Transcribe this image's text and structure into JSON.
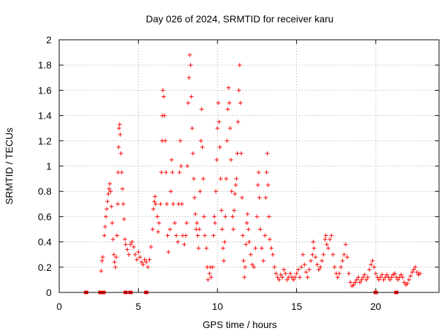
{
  "chart_data": {
    "type": "scatter",
    "title": "Day 026 of 2024, SRMTID for receiver karu",
    "xlabel": "GPS time / hours",
    "ylabel": "SRMTID / TECUs",
    "xlim": [
      0,
      24
    ],
    "ylim": [
      0,
      2
    ],
    "xticks": [
      0,
      5,
      10,
      15,
      20
    ],
    "xtick_labels": [
      "0",
      "5",
      "10",
      "15",
      "20"
    ],
    "yticks": [
      0,
      0.2,
      0.4,
      0.6,
      0.8,
      1,
      1.2,
      1.4,
      1.6,
      1.8,
      2
    ],
    "ytick_labels": [
      "0",
      "0.2",
      "0.4",
      "0.6",
      "0.8",
      "1",
      "1.2",
      "1.4",
      "1.6",
      "1.8",
      "2"
    ],
    "grid": true,
    "marker": "plus",
    "color": "#ff0000",
    "series": [
      {
        "name": "SRMTID",
        "zero_points": [
          1.7,
          2.6,
          2.7,
          2.8,
          4.2,
          4.5,
          5.5,
          20.0,
          21.3
        ],
        "points": [
          [
            2.65,
            0.17
          ],
          [
            2.7,
            0.25
          ],
          [
            2.75,
            0.28
          ],
          [
            2.85,
            0.45
          ],
          [
            2.9,
            0.52
          ],
          [
            2.95,
            0.6
          ],
          [
            3.0,
            0.66
          ],
          [
            3.05,
            0.72
          ],
          [
            3.1,
            0.78
          ],
          [
            3.15,
            0.82
          ],
          [
            3.2,
            0.86
          ],
          [
            3.25,
            0.8
          ],
          [
            3.3,
            0.68
          ],
          [
            3.35,
            0.55
          ],
          [
            3.4,
            0.42
          ],
          [
            3.45,
            0.3
          ],
          [
            3.5,
            0.24
          ],
          [
            3.55,
            0.2
          ],
          [
            3.6,
            0.28
          ],
          [
            3.65,
            0.45
          ],
          [
            3.7,
            0.7
          ],
          [
            3.72,
            0.95
          ],
          [
            3.75,
            1.15
          ],
          [
            3.78,
            1.3
          ],
          [
            3.82,
            1.33
          ],
          [
            3.85,
            1.25
          ],
          [
            3.9,
            1.1
          ],
          [
            3.95,
            0.95
          ],
          [
            4.0,
            0.82
          ],
          [
            4.05,
            0.7
          ],
          [
            4.1,
            0.58
          ],
          [
            4.15,
            0.42
          ],
          [
            4.2,
            0.38
          ],
          [
            4.3,
            0.34
          ],
          [
            4.4,
            0.3
          ],
          [
            4.5,
            0.38
          ],
          [
            4.6,
            0.4
          ],
          [
            4.7,
            0.36
          ],
          [
            4.8,
            0.3
          ],
          [
            4.9,
            0.26
          ],
          [
            5.0,
            0.32
          ],
          [
            5.1,
            0.28
          ],
          [
            5.2,
            0.24
          ],
          [
            5.3,
            0.22
          ],
          [
            5.4,
            0.26
          ],
          [
            5.5,
            0.24
          ],
          [
            5.6,
            0.2
          ],
          [
            5.7,
            0.26
          ],
          [
            5.8,
            0.36
          ],
          [
            5.9,
            0.5
          ],
          [
            5.95,
            0.66
          ],
          [
            6.0,
            0.72
          ],
          [
            6.05,
            0.76
          ],
          [
            6.1,
            0.7
          ],
          [
            6.2,
            0.6
          ],
          [
            6.25,
            0.48
          ],
          [
            6.3,
            0.55
          ],
          [
            6.4,
            0.7
          ],
          [
            6.45,
            0.95
          ],
          [
            6.5,
            1.2
          ],
          [
            6.52,
            1.4
          ],
          [
            6.55,
            1.6
          ],
          [
            6.6,
            1.55
          ],
          [
            6.65,
            1.4
          ],
          [
            6.7,
            1.2
          ],
          [
            6.75,
            0.95
          ],
          [
            6.8,
            0.7
          ],
          [
            6.85,
            0.45
          ],
          [
            6.9,
            0.32
          ],
          [
            7.0,
            0.5
          ],
          [
            7.05,
            0.8
          ],
          [
            7.1,
            1.05
          ],
          [
            7.15,
            0.95
          ],
          [
            7.2,
            0.7
          ],
          [
            7.3,
            0.55
          ],
          [
            7.4,
            0.45
          ],
          [
            7.5,
            0.4
          ],
          [
            7.55,
            0.7
          ],
          [
            7.6,
            0.95
          ],
          [
            7.65,
            1.2
          ],
          [
            7.7,
            1.0
          ],
          [
            7.75,
            0.7
          ],
          [
            7.8,
            0.45
          ],
          [
            7.9,
            0.38
          ],
          [
            8.0,
            0.45
          ],
          [
            8.05,
            0.55
          ],
          [
            8.1,
            1.0
          ],
          [
            8.15,
            1.5
          ],
          [
            8.2,
            1.7
          ],
          [
            8.25,
            1.88
          ],
          [
            8.3,
            1.8
          ],
          [
            8.35,
            1.55
          ],
          [
            8.4,
            1.3
          ],
          [
            8.45,
            1.1
          ],
          [
            8.5,
            0.9
          ],
          [
            8.55,
            0.75
          ],
          [
            8.6,
            0.62
          ],
          [
            8.65,
            0.5
          ],
          [
            8.7,
            0.55
          ],
          [
            8.75,
            0.45
          ],
          [
            8.8,
            0.35
          ],
          [
            8.85,
            0.5
          ],
          [
            8.9,
            0.8
          ],
          [
            8.95,
            1.2
          ],
          [
            9.0,
            1.45
          ],
          [
            9.05,
            1.15
          ],
          [
            9.1,
            0.9
          ],
          [
            9.15,
            0.6
          ],
          [
            9.2,
            0.45
          ],
          [
            9.3,
            0.35
          ],
          [
            9.35,
            0.2
          ],
          [
            9.4,
            0.1
          ],
          [
            9.5,
            0.15
          ],
          [
            9.55,
            0.2
          ],
          [
            9.6,
            0.12
          ],
          [
            9.7,
            0.2
          ],
          [
            9.75,
            0.45
          ],
          [
            9.8,
            0.6
          ],
          [
            9.85,
            0.55
          ],
          [
            9.9,
            0.8
          ],
          [
            9.95,
            1.05
          ],
          [
            10.0,
            1.3
          ],
          [
            10.05,
            1.5
          ],
          [
            10.1,
            1.35
          ],
          [
            10.15,
            1.15
          ],
          [
            10.2,
            0.9
          ],
          [
            10.25,
            0.65
          ],
          [
            10.3,
            0.5
          ],
          [
            10.35,
            0.35
          ],
          [
            10.4,
            0.25
          ],
          [
            10.45,
            0.4
          ],
          [
            10.5,
            0.6
          ],
          [
            10.55,
            0.9
          ],
          [
            10.6,
            1.2
          ],
          [
            10.65,
            1.45
          ],
          [
            10.7,
            1.62
          ],
          [
            10.75,
            1.5
          ],
          [
            10.8,
            1.3
          ],
          [
            10.85,
            1.05
          ],
          [
            10.9,
            0.8
          ],
          [
            10.95,
            0.6
          ],
          [
            11.0,
            0.5
          ],
          [
            11.05,
            0.65
          ],
          [
            11.1,
            0.78
          ],
          [
            11.15,
            0.85
          ],
          [
            11.2,
            0.9
          ],
          [
            11.25,
            1.1
          ],
          [
            11.3,
            1.35
          ],
          [
            11.35,
            1.6
          ],
          [
            11.4,
            1.8
          ],
          [
            11.45,
            1.5
          ],
          [
            11.5,
            1.1
          ],
          [
            11.55,
            0.75
          ],
          [
            11.6,
            0.45
          ],
          [
            11.65,
            0.25
          ],
          [
            11.7,
            0.12
          ],
          [
            11.75,
            0.2
          ],
          [
            11.8,
            0.38
          ],
          [
            11.85,
            0.55
          ],
          [
            11.9,
            0.62
          ],
          [
            11.95,
            0.5
          ],
          [
            12.0,
            0.4
          ],
          [
            12.1,
            0.3
          ],
          [
            12.2,
            0.22
          ],
          [
            12.3,
            0.2
          ],
          [
            12.4,
            0.35
          ],
          [
            12.5,
            0.6
          ],
          [
            12.55,
            0.85
          ],
          [
            12.6,
            0.95
          ],
          [
            12.65,
            0.75
          ],
          [
            12.7,
            0.5
          ],
          [
            12.8,
            0.35
          ],
          [
            12.9,
            0.25
          ],
          [
            13.0,
            0.45
          ],
          [
            13.05,
            0.75
          ],
          [
            13.1,
            0.95
          ],
          [
            13.15,
            1.1
          ],
          [
            13.2,
            0.85
          ],
          [
            13.25,
            0.6
          ],
          [
            13.3,
            0.42
          ],
          [
            13.4,
            0.35
          ],
          [
            13.5,
            0.3
          ],
          [
            13.6,
            0.2
          ],
          [
            13.7,
            0.15
          ],
          [
            13.8,
            0.12
          ],
          [
            13.9,
            0.1
          ],
          [
            14.0,
            0.14
          ],
          [
            14.1,
            0.12
          ],
          [
            14.2,
            0.18
          ],
          [
            14.3,
            0.15
          ],
          [
            14.4,
            0.1
          ],
          [
            14.5,
            0.12
          ],
          [
            14.6,
            0.15
          ],
          [
            14.7,
            0.12
          ],
          [
            14.8,
            0.1
          ],
          [
            14.9,
            0.12
          ],
          [
            15.0,
            0.15
          ],
          [
            15.1,
            0.18
          ],
          [
            15.2,
            0.12
          ],
          [
            15.3,
            0.2
          ],
          [
            15.4,
            0.3
          ],
          [
            15.5,
            0.22
          ],
          [
            15.6,
            0.16
          ],
          [
            15.7,
            0.12
          ],
          [
            15.8,
            0.18
          ],
          [
            15.9,
            0.25
          ],
          [
            16.0,
            0.3
          ],
          [
            16.05,
            0.4
          ],
          [
            16.1,
            0.35
          ],
          [
            16.2,
            0.28
          ],
          [
            16.3,
            0.22
          ],
          [
            16.4,
            0.18
          ],
          [
            16.5,
            0.2
          ],
          [
            16.6,
            0.25
          ],
          [
            16.7,
            0.3
          ],
          [
            16.8,
            0.42
          ],
          [
            16.85,
            0.45
          ],
          [
            16.9,
            0.38
          ],
          [
            17.0,
            0.35
          ],
          [
            17.1,
            0.42
          ],
          [
            17.2,
            0.45
          ],
          [
            17.3,
            0.3
          ],
          [
            17.4,
            0.2
          ],
          [
            17.5,
            0.15
          ],
          [
            17.6,
            0.12
          ],
          [
            17.7,
            0.15
          ],
          [
            17.8,
            0.2
          ],
          [
            17.9,
            0.25
          ],
          [
            18.0,
            0.3
          ],
          [
            18.1,
            0.38
          ],
          [
            18.2,
            0.28
          ],
          [
            18.3,
            0.15
          ],
          [
            18.4,
            0.08
          ],
          [
            18.5,
            0.05
          ],
          [
            18.6,
            0.06
          ],
          [
            18.7,
            0.08
          ],
          [
            18.8,
            0.1
          ],
          [
            18.9,
            0.12
          ],
          [
            19.0,
            0.08
          ],
          [
            19.1,
            0.1
          ],
          [
            19.2,
            0.12
          ],
          [
            19.3,
            0.14
          ],
          [
            19.4,
            0.1
          ],
          [
            19.5,
            0.12
          ],
          [
            19.6,
            0.18
          ],
          [
            19.7,
            0.22
          ],
          [
            19.8,
            0.25
          ],
          [
            19.9,
            0.2
          ],
          [
            20.0,
            0.15
          ],
          [
            20.1,
            0.12
          ],
          [
            20.2,
            0.1
          ],
          [
            20.3,
            0.12
          ],
          [
            20.4,
            0.14
          ],
          [
            20.5,
            0.1
          ],
          [
            20.6,
            0.12
          ],
          [
            20.7,
            0.14
          ],
          [
            20.8,
            0.12
          ],
          [
            20.9,
            0.1
          ],
          [
            21.0,
            0.12
          ],
          [
            21.1,
            0.14
          ],
          [
            21.2,
            0.15
          ],
          [
            21.3,
            0.12
          ],
          [
            21.4,
            0.1
          ],
          [
            21.5,
            0.12
          ],
          [
            21.6,
            0.14
          ],
          [
            21.7,
            0.12
          ],
          [
            21.8,
            0.08
          ],
          [
            21.9,
            0.06
          ],
          [
            22.0,
            0.07
          ],
          [
            22.1,
            0.1
          ],
          [
            22.2,
            0.13
          ],
          [
            22.3,
            0.16
          ],
          [
            22.4,
            0.18
          ],
          [
            22.5,
            0.2
          ],
          [
            22.6,
            0.16
          ],
          [
            22.7,
            0.14
          ],
          [
            22.8,
            0.15
          ]
        ]
      }
    ]
  }
}
